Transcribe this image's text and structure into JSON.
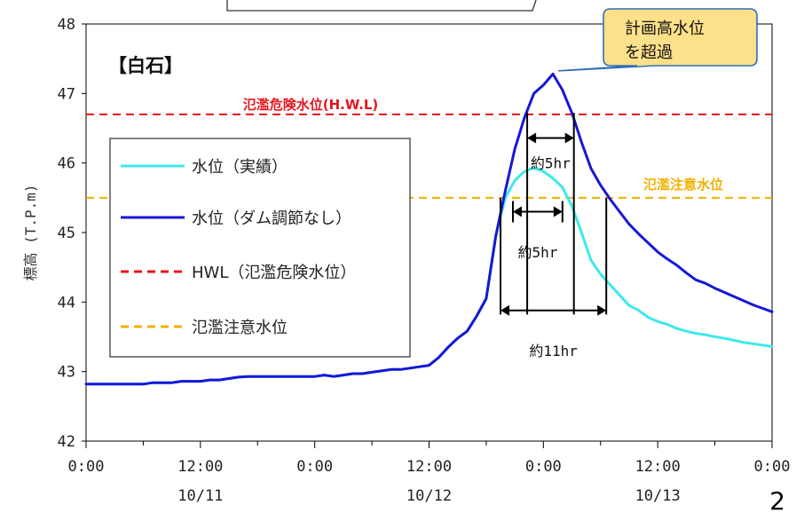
{
  "chart_data": {
    "type": "line",
    "station_label": "【白石】",
    "ylabel": "標高 (T.P.m)",
    "ylim": [
      42,
      48
    ],
    "yticks": [
      "42",
      "43",
      "44",
      "45",
      "46",
      "47",
      "48"
    ],
    "xlim": [
      0,
      72
    ],
    "xticks": [
      {
        "h": 0,
        "label": "0:00"
      },
      {
        "h": 12,
        "label": "12:00"
      },
      {
        "h": 24,
        "label": "0:00"
      },
      {
        "h": 36,
        "label": "12:00"
      },
      {
        "h": 48,
        "label": "0:00"
      },
      {
        "h": 60,
        "label": "12:00"
      },
      {
        "h": 72,
        "label": "0:00"
      }
    ],
    "date_labels": [
      {
        "h": 12,
        "label": "10/11"
      },
      {
        "h": 36,
        "label": "10/12"
      },
      {
        "h": 60,
        "label": "10/13"
      }
    ],
    "series": [
      {
        "name": "水位（実績）",
        "color": "#3ee8ea",
        "x": [
          0,
          1,
          2,
          3,
          4,
          5,
          6,
          7,
          8,
          9,
          10,
          11,
          12,
          13,
          14,
          15,
          16,
          17,
          18,
          19,
          20,
          21,
          22,
          23,
          24,
          25,
          26,
          27,
          28,
          29,
          30,
          31,
          32,
          33,
          34,
          35,
          36,
          37,
          38,
          39,
          40,
          41,
          42,
          43,
          44,
          45,
          46,
          47,
          48,
          49,
          50,
          51,
          52,
          53,
          54,
          55,
          56,
          57,
          58,
          59,
          60,
          61,
          62,
          63,
          64,
          65,
          66,
          67,
          68,
          69,
          70,
          71,
          72
        ],
        "values": [
          42.82,
          42.82,
          42.82,
          42.82,
          42.82,
          42.82,
          42.82,
          42.84,
          42.84,
          42.84,
          42.86,
          42.86,
          42.86,
          42.88,
          42.88,
          42.9,
          42.92,
          42.93,
          42.93,
          42.93,
          42.93,
          42.93,
          42.93,
          42.93,
          42.93,
          42.95,
          42.93,
          42.95,
          42.97,
          42.97,
          42.99,
          43.01,
          43.03,
          43.03,
          43.05,
          43.07,
          43.09,
          43.2,
          43.35,
          43.48,
          43.58,
          43.8,
          44.05,
          44.95,
          45.5,
          45.75,
          45.88,
          45.93,
          45.88,
          45.78,
          45.65,
          45.38,
          45.0,
          44.6,
          44.4,
          44.25,
          44.1,
          43.95,
          43.88,
          43.78,
          43.72,
          43.68,
          43.62,
          43.58,
          43.55,
          43.53,
          43.5,
          43.48,
          43.45,
          43.42,
          43.4,
          43.38,
          43.36
        ]
      },
      {
        "name": "水位（ダム調節なし）",
        "color": "#1717d6",
        "x": [
          0,
          1,
          2,
          3,
          4,
          5,
          6,
          7,
          8,
          9,
          10,
          11,
          12,
          13,
          14,
          15,
          16,
          17,
          18,
          19,
          20,
          21,
          22,
          23,
          24,
          25,
          26,
          27,
          28,
          29,
          30,
          31,
          32,
          33,
          34,
          35,
          36,
          37,
          38,
          39,
          40,
          41,
          42,
          43,
          44,
          45,
          46,
          47,
          48,
          49,
          50,
          51,
          52,
          53,
          54,
          55,
          56,
          57,
          58,
          59,
          60,
          61,
          62,
          63,
          64,
          65,
          66,
          67,
          68,
          69,
          70,
          71,
          72
        ],
        "values": [
          42.82,
          42.82,
          42.82,
          42.82,
          42.82,
          42.82,
          42.82,
          42.84,
          42.84,
          42.84,
          42.86,
          42.86,
          42.86,
          42.88,
          42.88,
          42.9,
          42.92,
          42.93,
          42.93,
          42.93,
          42.93,
          42.93,
          42.93,
          42.93,
          42.93,
          42.95,
          42.93,
          42.95,
          42.97,
          42.97,
          42.99,
          43.01,
          43.03,
          43.03,
          43.05,
          43.07,
          43.09,
          43.2,
          43.35,
          43.48,
          43.58,
          43.8,
          44.05,
          44.95,
          45.6,
          46.2,
          46.65,
          47.0,
          47.12,
          47.28,
          47.05,
          46.72,
          46.3,
          45.92,
          45.68,
          45.48,
          45.3,
          45.12,
          44.98,
          44.85,
          44.72,
          44.62,
          44.53,
          44.42,
          44.32,
          44.27,
          44.2,
          44.14,
          44.08,
          44.02,
          43.96,
          43.91,
          43.86
        ]
      }
    ],
    "reference_lines": [
      {
        "name": "HWL（氾濫危険水位）",
        "label": "氾濫危険水位(H.W.L)",
        "value": 46.7,
        "color": "#e8141b"
      },
      {
        "name": "氾濫注意水位",
        "label": "氾濫注意水位",
        "value": 45.5,
        "color": "#f2b000"
      }
    ],
    "durations": [
      {
        "label": "約5hr",
        "start_h": 46.3,
        "end_h": 51.2,
        "level": 46.36,
        "label_level": 46.0
      },
      {
        "label": "約5hr",
        "start_h": 44.8,
        "end_h": 50.0,
        "level": 45.3,
        "label_level": 44.72
      },
      {
        "label": "約11hr",
        "start_h": 43.5,
        "end_h": 54.6,
        "level": 43.88,
        "label_level": 43.3
      }
    ],
    "duration_bounds": [
      {
        "h": 46.3,
        "y_top": 46.72
      },
      {
        "h": 51.2,
        "y_top": 46.72
      },
      {
        "h": 43.5,
        "y_top": 45.5
      },
      {
        "h": 54.6,
        "y_top": 45.5
      }
    ],
    "callout": {
      "lines": [
        "計画高水位",
        "を超過"
      ],
      "point_h": 49.2,
      "point_y": 47.3
    },
    "legend_placement": "center-left",
    "grid": false
  },
  "page_number": "2"
}
